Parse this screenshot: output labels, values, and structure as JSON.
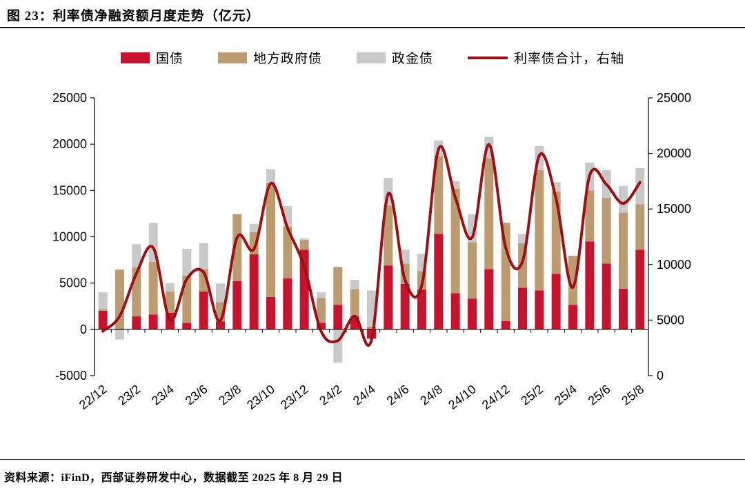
{
  "header": {
    "title": "图 23：利率债净融资额月度走势（亿元）"
  },
  "footer": {
    "source": "资料来源：iFinD，西部证券研发中心，数据截至 2025 年 8 月 29 日"
  },
  "colors": {
    "treasury_bar": "#c9122b",
    "local_gov_bar": "#bd9b70",
    "policy_bank_bar": "#c9c9c9",
    "total_line": "#9c0f13",
    "axis": "#000000"
  },
  "chart_data": {
    "type": "bar",
    "subtype": "stacked-bars-with-smoothed-line",
    "title": "利率债净融资额月度走势（亿元）",
    "grid": false,
    "legend_position": "top",
    "categories": [
      "22/12",
      "23/1",
      "23/2",
      "23/3",
      "23/4",
      "23/5",
      "23/6",
      "23/7",
      "23/8",
      "23/9",
      "23/10",
      "23/11",
      "23/12",
      "24/1",
      "24/2",
      "24/3",
      "24/4",
      "24/5",
      "24/6",
      "24/7",
      "24/8",
      "24/9",
      "24/10",
      "24/11",
      "24/12",
      "25/1",
      "25/2",
      "25/3",
      "25/4",
      "25/5",
      "25/6",
      "25/7",
      "25/8"
    ],
    "x_tick_labels": [
      "22/12",
      "23/2",
      "23/4",
      "23/6",
      "23/8",
      "23/10",
      "23/12",
      "24/2",
      "24/4",
      "24/6",
      "24/8",
      "24/10",
      "24/12",
      "25/2",
      "25/4",
      "25/6",
      "25/8"
    ],
    "x_label_every": 2,
    "series": [
      {
        "name": "国债",
        "type": "bar",
        "axis": "left",
        "color": "#c9122b",
        "values": [
          2000,
          0,
          1400,
          1600,
          1800,
          700,
          4100,
          850,
          5200,
          8100,
          3500,
          5500,
          8600,
          700,
          2650,
          1400,
          -1000,
          6900,
          4900,
          4300,
          10300,
          3900,
          3300,
          6500,
          900,
          4500,
          4200,
          6000,
          2650,
          9500,
          7100,
          4400,
          8600
        ]
      },
      {
        "name": "地方政府债",
        "type": "bar",
        "axis": "left",
        "color": "#bd9b70",
        "values": [
          200,
          6450,
          5300,
          5700,
          2300,
          5100,
          2400,
          2100,
          7250,
          2400,
          12300,
          5600,
          1050,
          2700,
          4100,
          2950,
          300,
          6500,
          2200,
          2000,
          8400,
          11300,
          6100,
          12000,
          10600,
          4800,
          13000,
          8900,
          5300,
          5500,
          7100,
          8200,
          4900
        ]
      },
      {
        "name": "政金债",
        "type": "bar",
        "axis": "left",
        "color": "#c9c9c9",
        "values": [
          1800,
          -1100,
          2500,
          4200,
          900,
          2900,
          2800,
          2000,
          0,
          900,
          1500,
          2200,
          150,
          600,
          -3600,
          1000,
          3900,
          2950,
          1500,
          1850,
          1700,
          800,
          3050,
          2300,
          0,
          1000,
          2600,
          1000,
          0,
          3000,
          3000,
          2900,
          3900
        ]
      },
      {
        "name": "利率债合计，右轴",
        "type": "line",
        "axis": "right",
        "color": "#9c0f13",
        "values": [
          4000,
          5350,
          9200,
          11500,
          5000,
          8700,
          9300,
          4950,
          12450,
          11400,
          17300,
          13300,
          9800,
          4000,
          3150,
          5350,
          3200,
          16350,
          8600,
          8150,
          20400,
          16000,
          12450,
          20800,
          11500,
          10300,
          19800,
          15900,
          7950,
          18000,
          17200,
          15500,
          17400
        ]
      }
    ],
    "left_axis": {
      "min": -5000,
      "max": 25000,
      "tick_interval": 5000,
      "ticks": [
        25000,
        20000,
        15000,
        10000,
        5000,
        0,
        -5000
      ]
    },
    "right_axis": {
      "min": 0,
      "max": 25000,
      "tick_interval": 5000,
      "ticks": [
        25000,
        20000,
        15000,
        10000,
        5000,
        0
      ]
    }
  }
}
